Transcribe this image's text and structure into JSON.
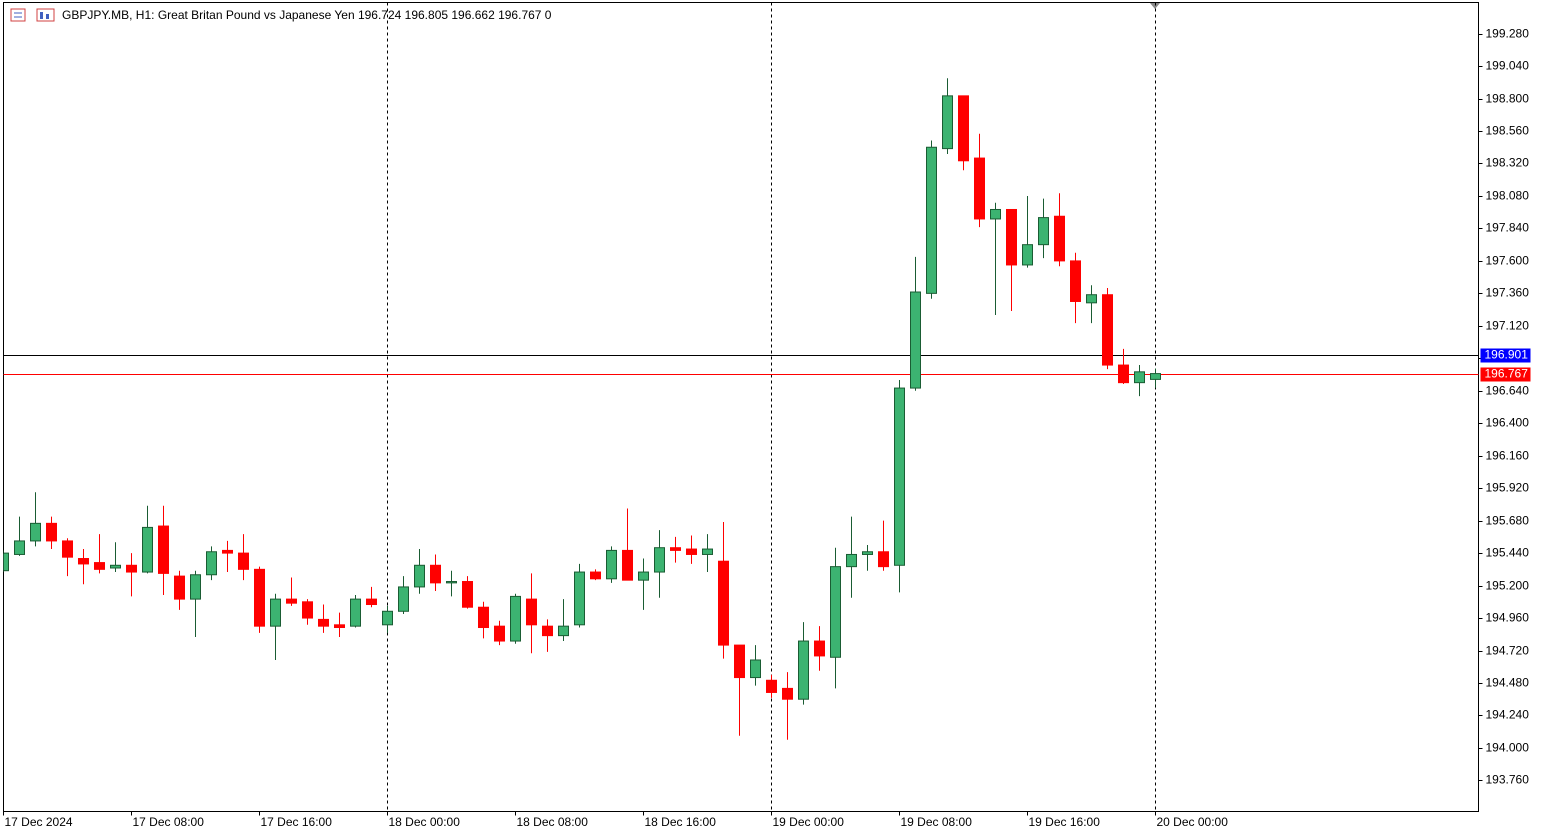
{
  "chart_data": {
    "type": "candlestick",
    "title": "GBPJPY.MB, H1:  Great Britan Pound vs Japanese Yen  196.724 196.805 196.662 196.767  0",
    "categories": [
      "17 Dec 2024",
      null,
      null,
      null,
      null,
      null,
      null,
      null,
      "17 Dec 08:00",
      null,
      null,
      null,
      null,
      null,
      null,
      null,
      "17 Dec 16:00",
      null,
      null,
      null,
      null,
      null,
      null,
      null,
      "18 Dec 00:00",
      null,
      null,
      null,
      null,
      null,
      null,
      null,
      "18 Dec 08:00",
      null,
      null,
      null,
      null,
      null,
      null,
      null,
      "18 Dec 16:00",
      null,
      null,
      null,
      null,
      null,
      null,
      null,
      "19 Dec 00:00",
      null,
      null,
      null,
      null,
      null,
      null,
      null,
      "19 Dec 08:00",
      null,
      null,
      null,
      null,
      null,
      null,
      null,
      "19 Dec 16:00",
      null,
      null,
      null,
      null,
      null,
      null,
      null,
      "20 Dec 00:00"
    ],
    "open": [
      195.31,
      195.43,
      195.53,
      195.66,
      195.53,
      195.4,
      195.37,
      195.33,
      195.35,
      195.3,
      195.64,
      195.27,
      195.1,
      195.28,
      195.46,
      195.44,
      195.32,
      194.9,
      195.1,
      195.08,
      194.95,
      194.91,
      194.9,
      195.1,
      194.91,
      195.01,
      195.19,
      195.35,
      195.22,
      195.23,
      195.04,
      194.9,
      194.79,
      195.1,
      194.9,
      194.83,
      194.91,
      195.3,
      195.25,
      195.46,
      195.24,
      195.3,
      195.48,
      195.47,
      195.43,
      195.38,
      194.76,
      194.52,
      194.5,
      194.44,
      194.36,
      194.79,
      194.67,
      195.34,
      195.43,
      195.45,
      195.35,
      196.66,
      197.36,
      198.43,
      198.82,
      198.36,
      197.91,
      197.98,
      197.57,
      197.72,
      197.93,
      197.6,
      197.29,
      197.35,
      196.83,
      196.7,
      196.724
    ],
    "high": [
      195.46,
      195.71,
      195.89,
      195.71,
      195.55,
      195.47,
      195.58,
      195.52,
      195.44,
      195.79,
      195.79,
      195.31,
      195.31,
      195.49,
      195.53,
      195.58,
      195.34,
      195.14,
      195.26,
      195.1,
      195.06,
      195.0,
      195.13,
      195.19,
      195.05,
      195.27,
      195.47,
      195.43,
      195.31,
      195.27,
      195.08,
      194.94,
      195.14,
      195.29,
      194.95,
      195.1,
      195.36,
      195.32,
      195.49,
      195.77,
      195.4,
      195.61,
      195.56,
      195.57,
      195.58,
      195.67,
      194.76,
      194.76,
      194.54,
      194.56,
      194.93,
      194.9,
      195.48,
      195.71,
      195.5,
      195.68,
      196.72,
      197.63,
      198.49,
      198.95,
      198.82,
      198.54,
      198.03,
      197.98,
      198.08,
      198.06,
      198.1,
      197.66,
      197.42,
      197.4,
      196.95,
      196.83,
      196.805
    ],
    "low": [
      195.3,
      195.42,
      195.49,
      195.47,
      195.27,
      195.21,
      195.29,
      195.3,
      195.12,
      195.29,
      195.13,
      195.02,
      194.82,
      195.24,
      195.3,
      195.24,
      194.85,
      194.65,
      195.05,
      194.91,
      194.85,
      194.82,
      194.89,
      195.04,
      194.85,
      194.99,
      195.14,
      195.16,
      195.12,
      195.03,
      194.81,
      194.76,
      194.77,
      194.7,
      194.71,
      194.79,
      194.89,
      195.24,
      195.22,
      195.24,
      195.02,
      195.11,
      195.37,
      195.36,
      195.3,
      194.66,
      194.09,
      194.46,
      194.37,
      194.06,
      194.32,
      194.57,
      194.44,
      195.11,
      195.31,
      195.31,
      195.15,
      196.64,
      197.32,
      198.39,
      198.27,
      197.85,
      197.2,
      197.23,
      197.55,
      197.62,
      197.56,
      197.14,
      197.14,
      196.8,
      196.69,
      196.6,
      196.662
    ],
    "close": [
      195.44,
      195.53,
      195.66,
      195.53,
      195.41,
      195.36,
      195.32,
      195.35,
      195.3,
      195.63,
      195.29,
      195.1,
      195.28,
      195.45,
      195.44,
      195.32,
      194.9,
      195.1,
      195.07,
      194.96,
      194.9,
      194.89,
      195.1,
      195.06,
      195.01,
      195.19,
      195.35,
      195.22,
      195.23,
      195.04,
      194.89,
      194.79,
      195.12,
      194.91,
      194.83,
      194.9,
      195.3,
      195.25,
      195.46,
      195.24,
      195.3,
      195.48,
      195.46,
      195.43,
      195.47,
      194.76,
      194.52,
      194.65,
      194.41,
      194.36,
      194.79,
      194.68,
      195.34,
      195.43,
      195.45,
      195.34,
      196.66,
      197.37,
      198.44,
      198.82,
      198.34,
      197.91,
      197.98,
      197.57,
      197.72,
      197.92,
      197.6,
      197.3,
      197.35,
      196.83,
      196.7,
      196.78,
      196.767
    ],
    "up_color": "#3cb371",
    "down_color": "#ff0000",
    "ylim": [
      193.53,
      199.51
    ],
    "yticks": [
      {
        "value": 199.28,
        "label": "199.280"
      },
      {
        "value": 199.04,
        "label": "199.040"
      },
      {
        "value": 198.8,
        "label": "198.800"
      },
      {
        "value": 198.56,
        "label": "198.560"
      },
      {
        "value": 198.32,
        "label": "198.320"
      },
      {
        "value": 198.08,
        "label": "198.080"
      },
      {
        "value": 197.84,
        "label": "197.840"
      },
      {
        "value": 197.6,
        "label": "197.600"
      },
      {
        "value": 197.36,
        "label": "197.360"
      },
      {
        "value": 197.12,
        "label": "197.120"
      },
      {
        "value": 196.88,
        "label": "196.880"
      },
      {
        "value": 196.64,
        "label": "196.640"
      },
      {
        "value": 196.4,
        "label": "196.400"
      },
      {
        "value": 196.16,
        "label": "196.160"
      },
      {
        "value": 195.92,
        "label": "195.920"
      },
      {
        "value": 195.68,
        "label": "195.680"
      },
      {
        "value": 195.44,
        "label": "195.440"
      },
      {
        "value": 195.2,
        "label": "195.200"
      },
      {
        "value": 194.96,
        "label": "194.960"
      },
      {
        "value": 194.72,
        "label": "194.720"
      },
      {
        "value": 194.48,
        "label": "194.480"
      },
      {
        "value": 194.24,
        "label": "194.240"
      },
      {
        "value": 194,
        "label": "194.000"
      },
      {
        "value": 193.76,
        "label": "193.760"
      }
    ],
    "price_lines": [
      {
        "value": 196.901,
        "line_color": "#000000",
        "label_color": "#0000ff"
      },
      {
        "value": 196.767,
        "line_color": "#ff0000",
        "label_color": "#ff0000"
      }
    ],
    "period_separators": true
  }
}
